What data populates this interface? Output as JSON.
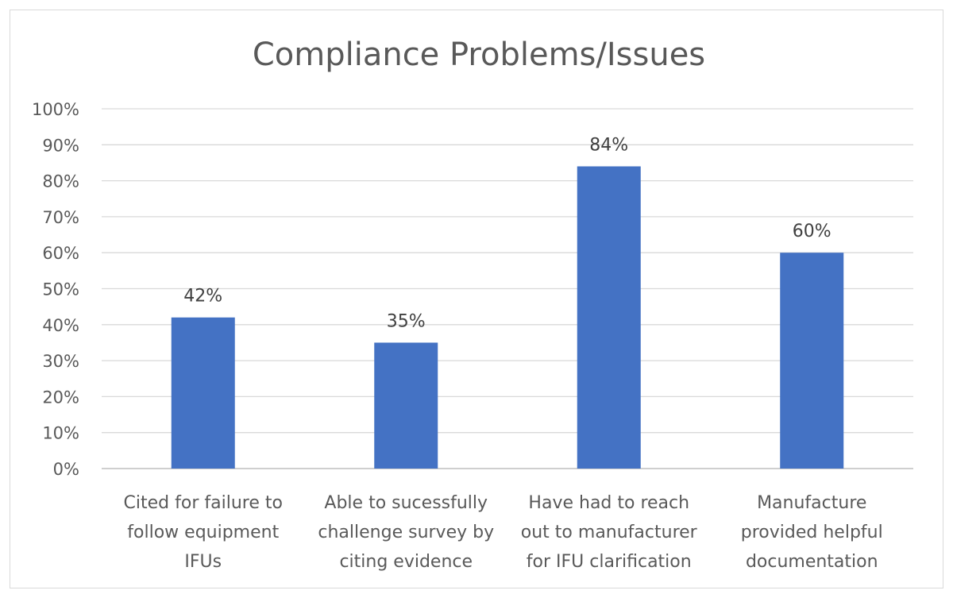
{
  "chart_data": {
    "type": "bar",
    "title": "Compliance Problems/Issues",
    "categories": [
      [
        "Cited for failure to",
        "follow equipment",
        "IFUs"
      ],
      [
        "Able to sucessfully",
        "challenge survey by",
        "citing evidence"
      ],
      [
        "Have had to reach",
        "out to manufacturer",
        "for IFU clarification"
      ],
      [
        "Manufacture",
        "provided helpful",
        "documentation"
      ]
    ],
    "values": [
      42,
      35,
      84,
      60
    ],
    "data_labels": [
      "42%",
      "35%",
      "84%",
      "60%"
    ],
    "ylim": [
      0,
      100
    ],
    "yticks": [
      0,
      10,
      20,
      30,
      40,
      50,
      60,
      70,
      80,
      90,
      100
    ],
    "ytick_labels": [
      "0%",
      "10%",
      "20%",
      "30%",
      "40%",
      "50%",
      "60%",
      "70%",
      "80%",
      "90%",
      "100%"
    ],
    "xlabel": "",
    "ylabel": "",
    "grid": true,
    "legend": "none",
    "bar_color": "#4472C4"
  }
}
